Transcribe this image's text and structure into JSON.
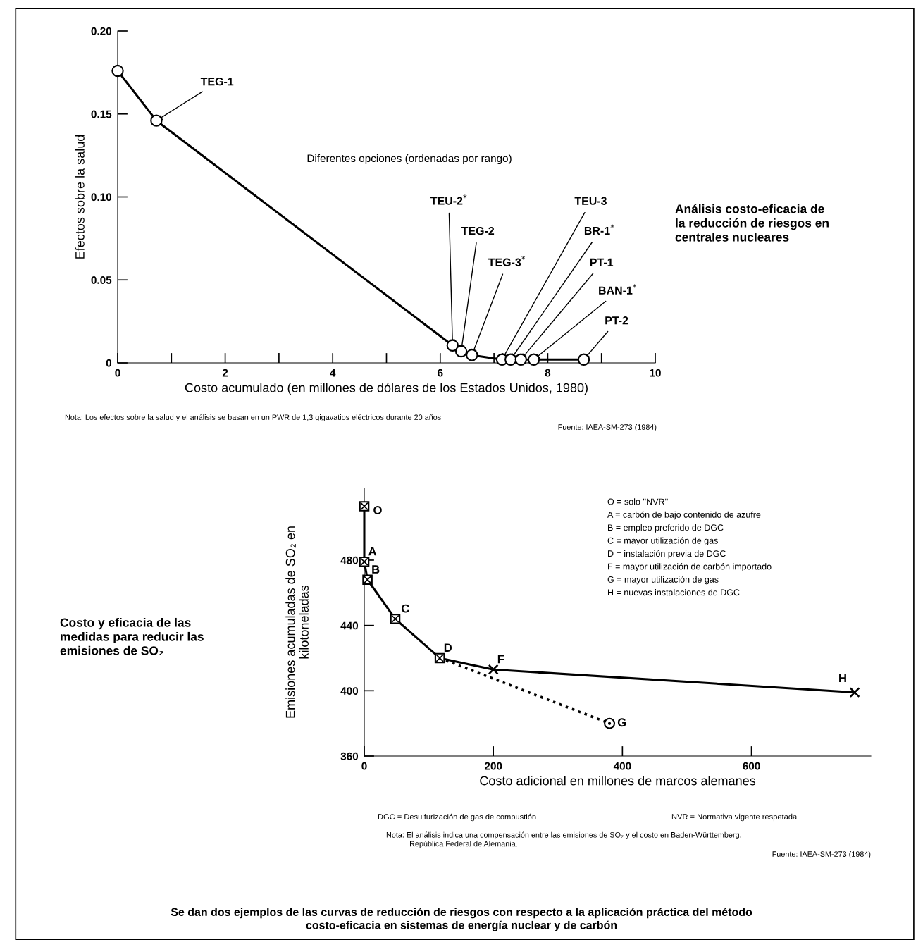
{
  "chart_data": [
    {
      "type": "line",
      "xlabel": "Costo acumulado (en millones de dólares de los Estados Unidos, 1980)",
      "ylabel": "Efectos sobre la salud",
      "x": [
        0,
        0.72,
        6.23,
        6.39,
        6.59,
        7.15,
        7.31,
        7.5,
        7.74,
        8.67
      ],
      "series": [
        {
          "color": "#000000",
          "values": [
            0.176,
            0.146,
            0.0105,
            0.007,
            0.0047,
            0.002,
            0.002,
            0.002,
            0.002,
            0.002
          ]
        }
      ],
      "marker": "circle",
      "line_style": "solid",
      "xlim": [
        0,
        10
      ],
      "ylim": [
        0,
        0.2
      ],
      "xticks": [
        0,
        {
          "value": 1,
          "label": null
        },
        2,
        {
          "value": 3,
          "label": null
        },
        4,
        {
          "value": 5,
          "label": null
        },
        6,
        {
          "value": 7,
          "label": null
        },
        8,
        {
          "value": 9,
          "label": null
        },
        10
      ],
      "yticks": [
        0,
        0.05,
        {
          "value": 0.1,
          "label": "0.10"
        },
        0.15,
        {
          "value": 0.2,
          "label": "0.20"
        }
      ],
      "annotations": [
        {
          "text": "TEG-1",
          "x": 0.72,
          "y": 0.146
        },
        {
          "text": "TEU-2$^{*}$",
          "x": 6.23,
          "y": 0.0105
        },
        {
          "text": "TEG-2",
          "x": 6.39,
          "y": 0.007
        },
        {
          "text": "TEG-3$^{*}$",
          "x": 6.59,
          "y": 0.0047
        },
        {
          "text": "TEU-3",
          "x": 7.15,
          "y": 0.002
        },
        {
          "text": "BR-1$^{*}$",
          "x": 7.31,
          "y": 0.002
        },
        {
          "text": "PT-1",
          "x": 7.5,
          "y": 0.002
        },
        {
          "text": "BAN-1$^{*}$",
          "x": 7.74,
          "y": 0.002
        },
        {
          "text": "PT-2",
          "x": 8.67,
          "y": 0.002
        },
        "Diferentes opciones (ordenadas por rango)",
        "Nota: Los efectos sobre la salud y el análisis se basan en un PWR de 1,3 gigavatios eléctricos durante 20 años",
        "Fuente: IAEA-SM-273 (1984)",
        "Análisis costo-eficacia de\nla reducción de riesgos en\ncentrales nucleares"
      ]
    },
    {
      "type": "line",
      "xlabel": "Costo adicional en millones de marcos alemanes",
      "ylabel": "Emisiones acumuladas de SO₂ en\nkilotoneladas",
      "series": [
        {
          "type": "line",
          "color": "#000000",
          "x": [
            0,
            0,
            5,
            48,
            117,
            200,
            760
          ],
          "values": [
            513,
            479,
            468,
            444,
            420,
            413,
            399
          ],
          "line_style": "solid"
        },
        {
          "type": "scatter",
          "color": "#000000",
          "x": [
            0,
            0,
            5,
            48,
            117
          ],
          "values": [
            513,
            479,
            468,
            444,
            420
          ],
          "marker": "square"
        },
        {
          "type": "scatter",
          "color": "#000000",
          "x": [
            200,
            760
          ],
          "values": [
            413,
            399
          ],
          "marker": "cross"
        },
        {
          "type": "line",
          "color": "#000000",
          "x": [
            117,
            380
          ],
          "values": [
            420,
            380
          ],
          "line_style": "dotted"
        },
        {
          "type": "scatter",
          "color": "#000000",
          "x": [
            380
          ],
          "values": [
            380
          ],
          "marker": "circle"
        }
      ],
      "xlim": [
        0,
        785
      ],
      "ylim": [
        360,
        524
      ],
      "xticks": [
        0,
        200,
        400,
        600
      ],
      "yticks": [
        360,
        400,
        440,
        480
      ],
      "annotations": [
        {
          "text": "O",
          "x": 0,
          "y": 513
        },
        {
          "text": "A",
          "x": 0,
          "y": 479
        },
        {
          "text": "B",
          "x": 5,
          "y": 468
        },
        {
          "text": "C",
          "x": 48,
          "y": 444
        },
        {
          "text": "D",
          "x": 117,
          "y": 420
        },
        {
          "text": "F",
          "x": 200,
          "y": 413
        },
        {
          "text": "H",
          "x": 760,
          "y": 399
        },
        {
          "text": "G",
          "x": 380,
          "y": 380
        },
        "Costo y eficacia de las\nmedidas para reducir las\nemisiones de SO₂",
        "O = solo ''NVR''",
        "A = carbón de bajo contenido de azufre",
        "B = empleo preferido de DGC",
        "C = mayor utilización de gas",
        "D = instalación previa de DGC",
        "F = mayor utilización de carbón importado",
        "G = mayor utilización de gas",
        "H = nuevas instalaciones de DGC",
        "DGC = Desulfurización de gas de combustión",
        "NVR = Normativa vigente respetada",
        "Nota: El análisis indica una compensación entre las emisiones de SO₂ y el costo en Baden-Württemberg.\n           República Federal de Alemania.",
        "Fuente: IAEA-SM-273 (1984)",
        "Se dan dos ejemplos de las curvas de reducción de riesgos con respecto a la aplicación práctica del método\ncosto-eficacia en sistemas de energía nuclear y de carbón"
      ]
    }
  ]
}
